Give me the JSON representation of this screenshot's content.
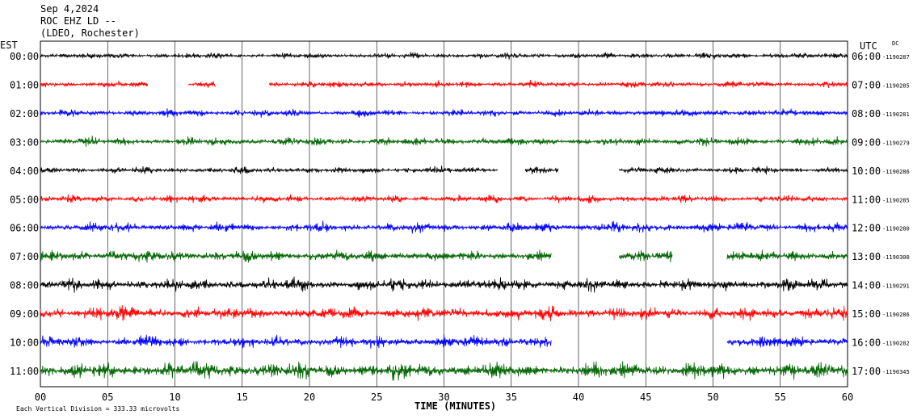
{
  "header": {
    "date": "Sep 4,2024",
    "station": "ROC EHZ LD --",
    "network": "(LDEO, Rochester)"
  },
  "left_timezone": "EST",
  "right_timezone": "UTC",
  "dc_label": "DC",
  "x_axis_title": "TIME (MINUTES)",
  "scale_note": "Each Vertical Division =  333.33 microvolts",
  "colors": {
    "black": "#000000",
    "red": "#ff0000",
    "blue": "#0000ff",
    "green": "#006400"
  },
  "chart_data": {
    "type": "line",
    "title": "Sep 4,2024 ROC EHZ LD -- (LDEO, Rochester)",
    "xlabel": "TIME (MINUTES)",
    "xlim": [
      0,
      60
    ],
    "x_ticks": [
      "00",
      "05",
      "10",
      "15",
      "20",
      "25",
      "30",
      "35",
      "40",
      "45",
      "50",
      "55",
      "60"
    ],
    "series": [
      {
        "est": "00:00",
        "utc": "06:00",
        "dc": "-1190287",
        "color": "black",
        "amp": 0.35,
        "gaps": []
      },
      {
        "est": "01:00",
        "utc": "07:00",
        "dc": "-1190285",
        "color": "red",
        "amp": 0.4,
        "gaps": [
          [
            8,
            11
          ],
          [
            13,
            17
          ]
        ]
      },
      {
        "est": "02:00",
        "utc": "08:00",
        "dc": "-1190281",
        "color": "blue",
        "amp": 0.45,
        "gaps": []
      },
      {
        "est": "03:00",
        "utc": "09:00",
        "dc": "-1190279",
        "color": "green",
        "amp": 0.5,
        "gaps": []
      },
      {
        "est": "04:00",
        "utc": "10:00",
        "dc": "-1190286",
        "color": "black",
        "amp": 0.4,
        "gaps": [
          [
            34,
            36
          ],
          [
            38.5,
            43
          ]
        ]
      },
      {
        "est": "05:00",
        "utc": "11:00",
        "dc": "-1190285",
        "color": "red",
        "amp": 0.45,
        "gaps": []
      },
      {
        "est": "06:00",
        "utc": "12:00",
        "dc": "-1190280",
        "color": "blue",
        "amp": 0.6,
        "gaps": []
      },
      {
        "est": "07:00",
        "utc": "13:00",
        "dc": "-1190300",
        "color": "green",
        "amp": 0.7,
        "gaps": [
          [
            38,
            43
          ],
          [
            47,
            51
          ]
        ]
      },
      {
        "est": "08:00",
        "utc": "14:00",
        "dc": "-1190291",
        "color": "black",
        "amp": 0.75,
        "gaps": []
      },
      {
        "est": "09:00",
        "utc": "15:00",
        "dc": "-1190286",
        "color": "red",
        "amp": 0.8,
        "gaps": []
      },
      {
        "est": "10:00",
        "utc": "16:00",
        "dc": "-1190282",
        "color": "blue",
        "amp": 0.75,
        "gaps": [
          [
            38,
            51
          ]
        ]
      },
      {
        "est": "11:00",
        "utc": "17:00",
        "dc": "-1190345",
        "color": "green",
        "amp": 1.0,
        "gaps": []
      }
    ]
  }
}
